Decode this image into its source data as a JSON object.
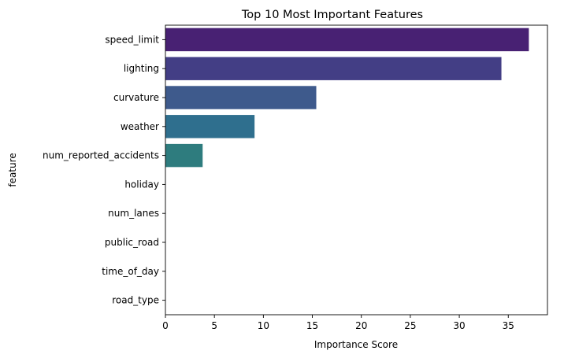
{
  "chart_data": {
    "type": "bar",
    "orientation": "horizontal",
    "title": "Top 10 Most Important Features",
    "xlabel": "Importance Score",
    "ylabel": "feature",
    "xlim": [
      0,
      39
    ],
    "xticks": [
      0,
      5,
      10,
      15,
      20,
      25,
      30,
      35
    ],
    "grid": false,
    "categories": [
      "speed_limit",
      "lighting",
      "curvature",
      "weather",
      "num_reported_accidents",
      "holiday",
      "num_lanes",
      "public_road",
      "time_of_day",
      "road_type"
    ],
    "values": [
      37.1,
      34.3,
      15.4,
      9.1,
      3.8,
      0,
      0,
      0,
      0,
      0
    ],
    "colors": [
      "#482173",
      "#433e85",
      "#3e5a8c",
      "#2f6f8e",
      "#2e7c7e",
      "#21918c",
      "#1fa187",
      "#2db27d",
      "#52c569",
      "#86d549"
    ]
  }
}
